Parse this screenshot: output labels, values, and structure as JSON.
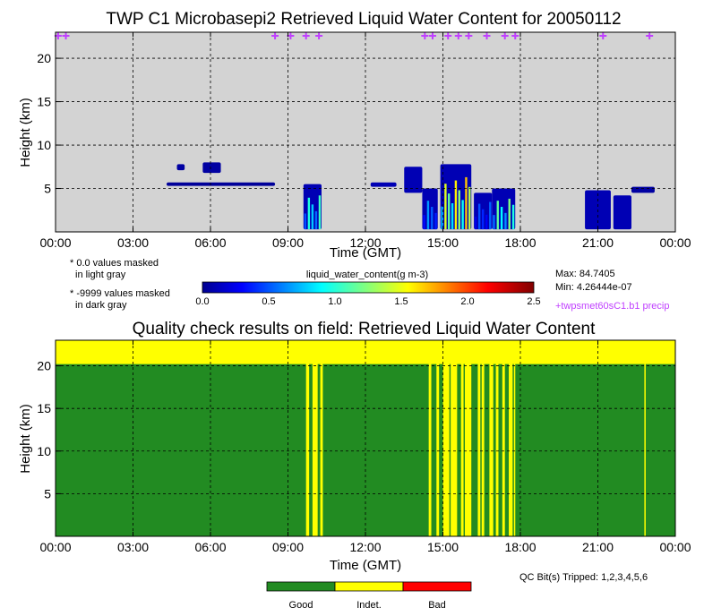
{
  "top_chart": {
    "title": "TWP C1 Microbasepi2 Retrieved Liquid Water Content for 20050112",
    "xlabel": "Time (GMT)",
    "ylabel": "Height (km)",
    "x_ticks": [
      "00:00",
      "03:00",
      "06:00",
      "09:00",
      "12:00",
      "15:00",
      "18:00",
      "21:00",
      "00:00"
    ],
    "y_ticks": [
      "5",
      "10",
      "15",
      "20"
    ],
    "colorbar_label": "liquid_water_content(g m-3)",
    "colorbar_ticks": [
      "0.0",
      "0.5",
      "1.0",
      "1.5",
      "2.0",
      "2.5"
    ],
    "note1_line1": "* 0.0 values masked",
    "note1_line2": "in light gray",
    "note2_line1": "* -9999 values masked",
    "note2_line2": "in dark gray",
    "max_text": "Max: 84.7405",
    "min_text": "Min: 4.26444e-07",
    "precip_text": "+twpsmet60sC1.b1 precip",
    "precip_color": "#c040ff",
    "background_color": "#d3d3d3"
  },
  "qc_chart": {
    "title": "Quality check results on field: Retrieved Liquid Water Content",
    "xlabel": "Time (GMT)",
    "ylabel": "Height (km)",
    "x_ticks": [
      "00:00",
      "03:00",
      "06:00",
      "09:00",
      "12:00",
      "15:00",
      "18:00",
      "21:00",
      "00:00"
    ],
    "y_ticks": [
      "5",
      "10",
      "15",
      "20"
    ],
    "qc_bits_text": "QC Bit(s) Tripped: 1,2,3,4,5,6",
    "legend": [
      {
        "label": "Good",
        "color": "#228b22"
      },
      {
        "label": "Indet.",
        "color": "#ffff00"
      },
      {
        "label": "Bad",
        "color": "#ff0000"
      }
    ]
  },
  "chart_data": [
    {
      "type": "heatmap",
      "title": "TWP C1 Microbasepi2 Retrieved Liquid Water Content for 20050112",
      "xlabel": "Time (GMT)",
      "ylabel": "Height (km)",
      "xlim_hours": [
        0,
        24
      ],
      "ylim_km": [
        0,
        23
      ],
      "grid": true,
      "colorbar": {
        "label": "liquid_water_content(g m-3)",
        "range": [
          0,
          2.5
        ]
      },
      "cloud_regions": [
        {
          "t0": 4.7,
          "t1": 5.0,
          "h0": 7.1,
          "h1": 7.8,
          "level": 0.05
        },
        {
          "t0": 5.7,
          "t1": 6.4,
          "h0": 6.8,
          "h1": 8.0,
          "level": 0.05
        },
        {
          "t0": 4.3,
          "t1": 8.5,
          "h0": 5.3,
          "h1": 5.7,
          "level": 0.03
        },
        {
          "t0": 9.6,
          "t1": 10.3,
          "h0": 0.3,
          "h1": 5.5,
          "level": 1.2
        },
        {
          "t0": 12.2,
          "t1": 13.2,
          "h0": 5.2,
          "h1": 5.7,
          "level": 0.1
        },
        {
          "t0": 13.5,
          "t1": 14.2,
          "h0": 4.5,
          "h1": 7.5,
          "level": 0.15
        },
        {
          "t0": 14.2,
          "t1": 14.8,
          "h0": 0.3,
          "h1": 5.0,
          "level": 0.8
        },
        {
          "t0": 14.9,
          "t1": 16.1,
          "h0": 0.3,
          "h1": 7.8,
          "level": 1.8
        },
        {
          "t0": 16.2,
          "t1": 16.9,
          "h0": 0.3,
          "h1": 4.5,
          "level": 0.6
        },
        {
          "t0": 16.9,
          "t1": 17.8,
          "h0": 0.3,
          "h1": 5.0,
          "level": 1.4
        },
        {
          "t0": 20.5,
          "t1": 21.5,
          "h0": 0.3,
          "h1": 4.8,
          "level": 0.1
        },
        {
          "t0": 21.6,
          "t1": 22.3,
          "h0": 0.3,
          "h1": 4.2,
          "level": 0.1
        },
        {
          "t0": 22.3,
          "t1": 23.2,
          "h0": 4.5,
          "h1": 5.2,
          "level": 0.05
        }
      ],
      "precip_marks_hours": [
        0.1,
        0.4,
        8.5,
        9.1,
        9.7,
        10.2,
        14.3,
        14.6,
        15.2,
        15.6,
        16.0,
        16.7,
        17.4,
        17.8,
        21.2,
        23.0
      ],
      "max": 84.7405,
      "min": 4.26444e-07
    },
    {
      "type": "heatmap",
      "title": "Quality check results on field: Retrieved Liquid Water Content",
      "xlabel": "Time (GMT)",
      "ylabel": "Height (km)",
      "xlim_hours": [
        0,
        24
      ],
      "ylim_km": [
        0,
        23
      ],
      "grid": true,
      "categories": [
        "Good",
        "Indet.",
        "Bad"
      ],
      "indeterminate_above_km": 20.2,
      "indeterminate_time_bands_hours": [
        [
          9.7,
          9.82
        ],
        [
          9.95,
          10.15
        ],
        [
          10.25,
          10.35
        ],
        [
          14.45,
          14.55
        ],
        [
          14.75,
          14.85
        ],
        [
          15.0,
          15.25
        ],
        [
          15.3,
          15.55
        ],
        [
          15.7,
          15.8
        ],
        [
          15.85,
          16.1
        ],
        [
          16.35,
          16.45
        ],
        [
          16.5,
          16.6
        ],
        [
          16.8,
          16.95
        ],
        [
          17.05,
          17.15
        ],
        [
          17.3,
          17.4
        ],
        [
          17.55,
          17.7
        ],
        [
          17.75,
          17.8
        ],
        [
          22.8,
          22.85
        ]
      ]
    }
  ]
}
